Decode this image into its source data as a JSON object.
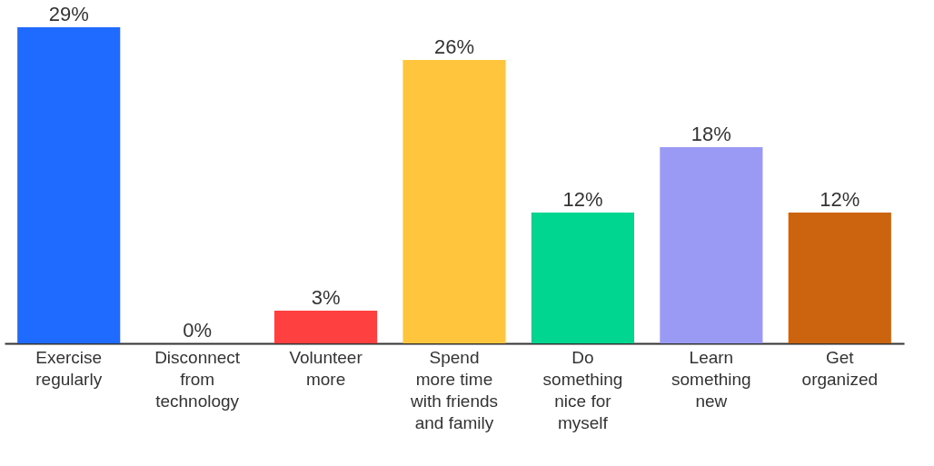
{
  "chart_data": {
    "type": "bar",
    "categories": [
      "Exercise\nregularly",
      "Disconnect\nfrom\ntechnology",
      "Volunteer\nmore",
      "Spend\nmore time\nwith friends\nand family",
      "Do\nsomething\nnice for\nmyself",
      "Learn\nsomething\nnew",
      "Get\norganized"
    ],
    "values": [
      29,
      0,
      3,
      26,
      12,
      18,
      12
    ],
    "colors": [
      "#1f6bff",
      "#9e9e9e",
      "#ff4040",
      "#ffc53d",
      "#00d68f",
      "#9a9af5",
      "#cc640f"
    ],
    "value_labels": [
      "29%",
      "0%",
      "3%",
      "26%",
      "12%",
      "18%",
      "12%"
    ],
    "grid": false
  }
}
